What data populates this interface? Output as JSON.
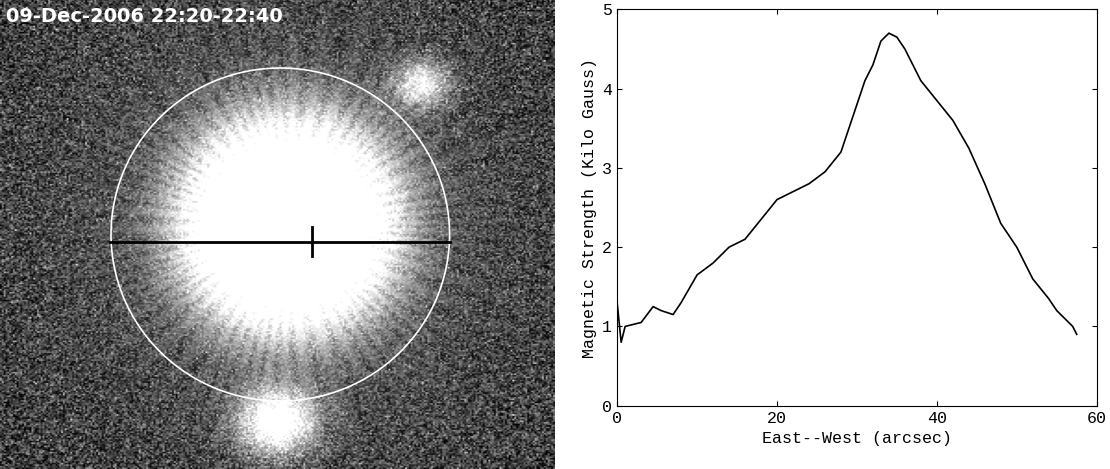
{
  "image": {
    "title": "09-Dec-2006 22:20-22:40"
  },
  "chart_data": {
    "type": "line",
    "x_label": "East--West (arcsec)",
    "y_label": "Magnetic Strength (Kilo Gauss)",
    "x": [
      0,
      0.5,
      1,
      3,
      4.5,
      5.5,
      7,
      8,
      10,
      12,
      14,
      16,
      18,
      20,
      22,
      24,
      26,
      28,
      30,
      31,
      32,
      33,
      34,
      35,
      36,
      37,
      38,
      40,
      42,
      44,
      46,
      48,
      50,
      52,
      54,
      55,
      56,
      57,
      57.5
    ],
    "values": [
      1.3,
      0.8,
      1.0,
      1.05,
      1.25,
      1.2,
      1.15,
      1.3,
      1.65,
      1.8,
      2.0,
      2.1,
      2.35,
      2.6,
      2.7,
      2.8,
      2.95,
      3.2,
      3.8,
      4.1,
      4.3,
      4.6,
      4.7,
      4.65,
      4.5,
      4.3,
      4.1,
      3.85,
      3.6,
      3.25,
      2.8,
      2.3,
      2.0,
      1.6,
      1.35,
      1.2,
      1.1,
      1.0,
      0.9
    ],
    "color": "#000000",
    "xlim": [
      0,
      60
    ],
    "xticks": [
      0,
      20,
      40,
      60
    ],
    "ylim": [
      0,
      5
    ],
    "yticks": [
      0,
      1,
      2,
      3,
      4,
      5
    ],
    "grid": false
  }
}
